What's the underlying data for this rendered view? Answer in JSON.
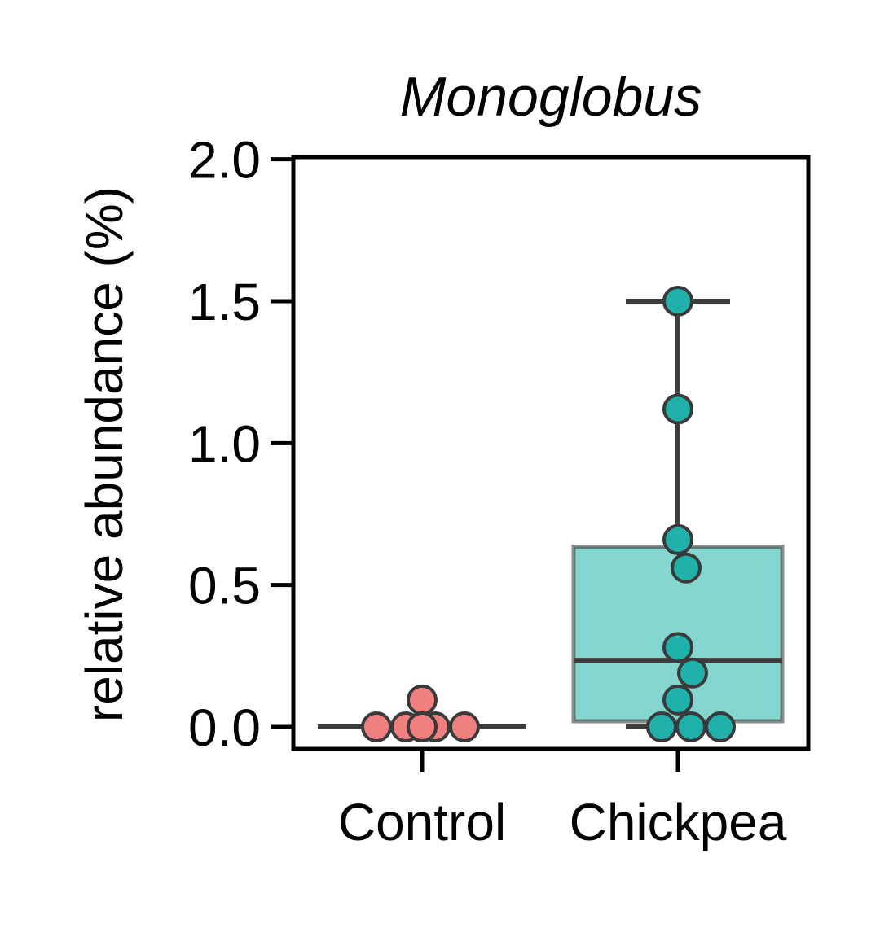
{
  "chart_data": {
    "type": "box",
    "title": "Monoglobus",
    "ylabel": "relative abundance (%)",
    "xlabel": "",
    "ylim": [
      -0.07,
      2.0
    ],
    "yticks": [
      0.0,
      0.5,
      1.0,
      1.5,
      2.0
    ],
    "ytick_labels": [
      "0.0",
      "0.5",
      "1.0",
      "1.5",
      "2.0"
    ],
    "categories": [
      "Control",
      "Chickpea"
    ],
    "boxes": [
      {
        "name": "Control",
        "q1": 0.0,
        "median": 0.0,
        "q3": 0.0,
        "whisker_low": 0.0,
        "whisker_high": 0.0,
        "box_color": "#f08080",
        "point_color": "#f08080"
      },
      {
        "name": "Chickpea",
        "q1": 0.02,
        "median": 0.235,
        "q3": 0.635,
        "whisker_low": 0.0,
        "whisker_high": 1.5,
        "box_color": "#20b2aa",
        "point_color": "#20b2aa"
      }
    ],
    "points": [
      {
        "category": "Control",
        "values": [
          0.0,
          0.0,
          0.0,
          0.0,
          0.0,
          0.0,
          0.095
        ]
      },
      {
        "category": "Chickpea",
        "values": [
          1.5,
          1.12,
          0.66,
          0.56,
          0.28,
          0.19,
          0.095,
          0.0,
          0.0,
          0.0
        ]
      }
    ]
  }
}
